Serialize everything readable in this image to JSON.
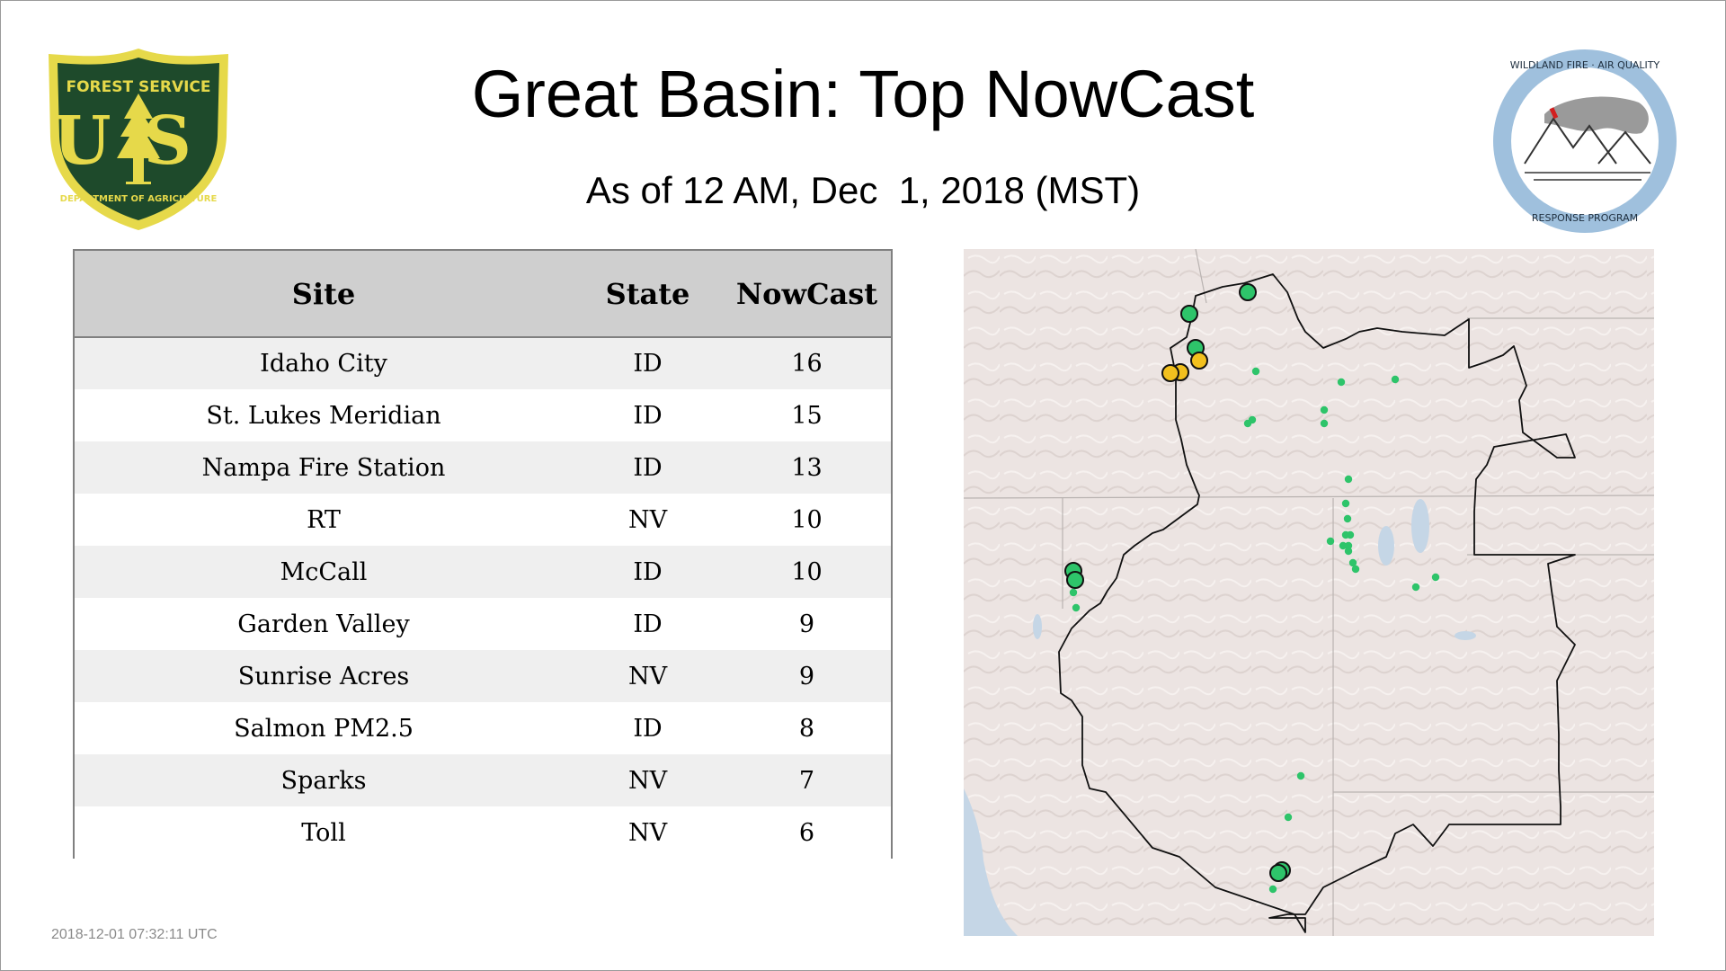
{
  "header": {
    "title": "Great Basin: Top NowCast",
    "subtitle": "As of 12 AM, Dec  1, 2018 (MST)"
  },
  "logos": {
    "usfs": {
      "top_text": "FOREST SERVICE",
      "letters": "US",
      "bottom_text": "DEPARTMENT OF AGRICULTURE",
      "color_bg": "#1e4a2b",
      "color_accent": "#e6d94a"
    },
    "wildland": {
      "top_text": "WILDLAND FIRE · AIR QUALITY",
      "bottom_text": "RESPONSE PROGRAM",
      "color_ring": "#9fc0dd"
    }
  },
  "table": {
    "headers": [
      "Site",
      "State",
      "NowCast"
    ],
    "rows": [
      {
        "site": "Idaho City",
        "state": "ID",
        "nowcast": "16"
      },
      {
        "site": "St. Lukes Meridian",
        "state": "ID",
        "nowcast": "15"
      },
      {
        "site": "Nampa Fire Station",
        "state": "ID",
        "nowcast": "13"
      },
      {
        "site": "RT",
        "state": "NV",
        "nowcast": "10"
      },
      {
        "site": "McCall",
        "state": "ID",
        "nowcast": "10"
      },
      {
        "site": "Garden Valley",
        "state": "ID",
        "nowcast": "9"
      },
      {
        "site": "Sunrise Acres",
        "state": "NV",
        "nowcast": "9"
      },
      {
        "site": "Salmon PM2.5",
        "state": "ID",
        "nowcast": "8"
      },
      {
        "site": "Sparks",
        "state": "NV",
        "nowcast": "7"
      },
      {
        "site": "Toll",
        "state": "NV",
        "nowcast": "6"
      }
    ]
  },
  "map": {
    "colors": {
      "good": "#2ec46a",
      "moderate": "#f2c01e",
      "water": "#c5d6e6",
      "land": "#ece4e2",
      "border": "#111111"
    },
    "sites": [
      {
        "category": "good",
        "highlight": true
      },
      {
        "category": "good",
        "highlight": true
      },
      {
        "category": "good",
        "highlight": true
      },
      {
        "category": "moderate",
        "highlight": true
      },
      {
        "category": "moderate",
        "highlight": true
      },
      {
        "category": "moderate",
        "highlight": true
      },
      {
        "category": "good",
        "highlight": true
      },
      {
        "category": "good",
        "highlight": true
      },
      {
        "category": "good",
        "highlight": true
      },
      {
        "category": "good",
        "highlight": true
      },
      {
        "category": "good",
        "highlight": false
      },
      {
        "category": "good",
        "highlight": false
      },
      {
        "category": "good",
        "highlight": false
      },
      {
        "category": "good",
        "highlight": false
      },
      {
        "category": "good",
        "highlight": false
      },
      {
        "category": "good",
        "highlight": false
      },
      {
        "category": "good",
        "highlight": false
      },
      {
        "category": "good",
        "highlight": false
      },
      {
        "category": "good",
        "highlight": false
      },
      {
        "category": "good",
        "highlight": false
      },
      {
        "category": "good",
        "highlight": false
      },
      {
        "category": "good",
        "highlight": false
      },
      {
        "category": "good",
        "highlight": false
      },
      {
        "category": "good",
        "highlight": false
      },
      {
        "category": "good",
        "highlight": false
      },
      {
        "category": "good",
        "highlight": false
      },
      {
        "category": "good",
        "highlight": false
      },
      {
        "category": "good",
        "highlight": false
      },
      {
        "category": "good",
        "highlight": false
      },
      {
        "category": "good",
        "highlight": false
      },
      {
        "category": "good",
        "highlight": false
      },
      {
        "category": "good",
        "highlight": false
      },
      {
        "category": "good",
        "highlight": false
      },
      {
        "category": "good",
        "highlight": false
      },
      {
        "category": "good",
        "highlight": false
      }
    ]
  },
  "footer": {
    "timestamp": "2018-12-01 07:32:11 UTC"
  }
}
